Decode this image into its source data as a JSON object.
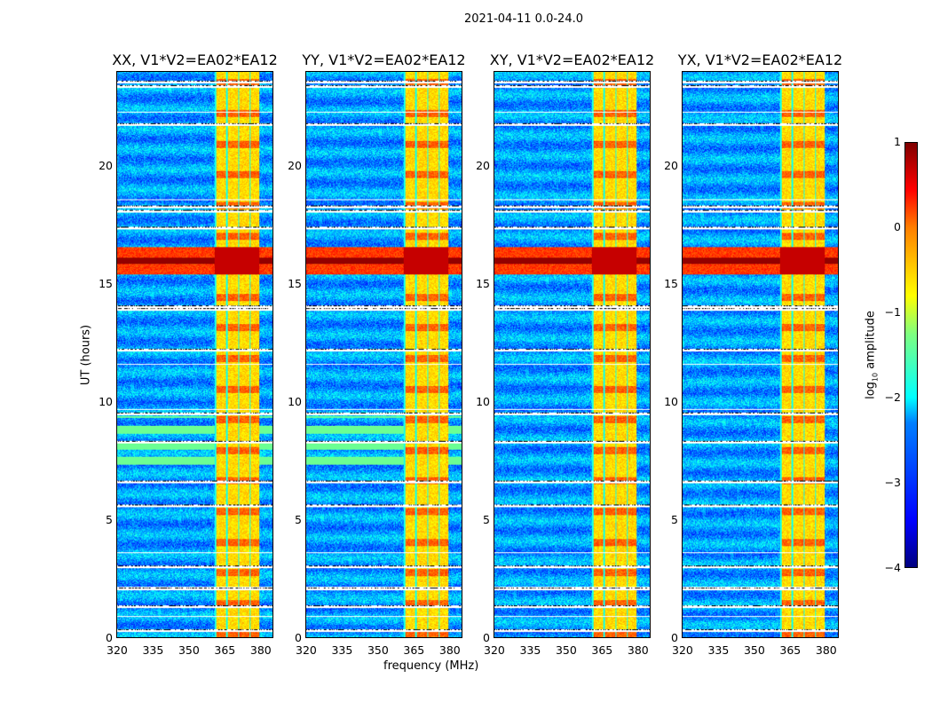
{
  "chart_data": {
    "type": "heatmap",
    "title": "2021-04-11 0.0-24.0",
    "xlabel": "frequency (MHz)",
    "ylabel": "UT (hours)",
    "xlim": [
      320,
      385.6
    ],
    "ylim": [
      0,
      24
    ],
    "xticks": [
      "320",
      "335",
      "350",
      "365",
      "380"
    ],
    "xtick_values": [
      320,
      335,
      350,
      365,
      380
    ],
    "yticks": [
      "0",
      "5",
      "10",
      "15",
      "20"
    ],
    "ytick_values": [
      0,
      5,
      10,
      15,
      20
    ],
    "colormap": "jet",
    "colorbar": {
      "label_main": "log",
      "label_sub": "10",
      "label_rest": " amplitude",
      "range": [
        -4,
        1
      ],
      "ticks": [
        "1",
        "0",
        "−1",
        "−2",
        "−3",
        "−4"
      ],
      "tick_values": [
        1,
        0,
        -1,
        -2,
        -3,
        -4
      ]
    },
    "rfi_band_mhz": [
      361,
      380
    ],
    "strong_band_hours": [
      15.4,
      16.6
    ],
    "flagged_hours": [
      23.6,
      23.4,
      22.3,
      21.8,
      18.6,
      18.3,
      18.1,
      17.4,
      14.05,
      13.95,
      12.2,
      11.6,
      9.7,
      9.5,
      8.3,
      6.6,
      5.6,
      3.6,
      3.0,
      2.15,
      2.05,
      1.3,
      0.9,
      0.3
    ],
    "panels": [
      {
        "title": "XX, V1*V2=EA02*EA12",
        "seed": 1
      },
      {
        "title": "YY, V1*V2=EA02*EA12",
        "seed": 2
      },
      {
        "title": "XY, V1*V2=EA02*EA12",
        "seed": 3
      },
      {
        "title": "YX, V1*V2=EA02*EA12",
        "seed": 4
      }
    ]
  }
}
